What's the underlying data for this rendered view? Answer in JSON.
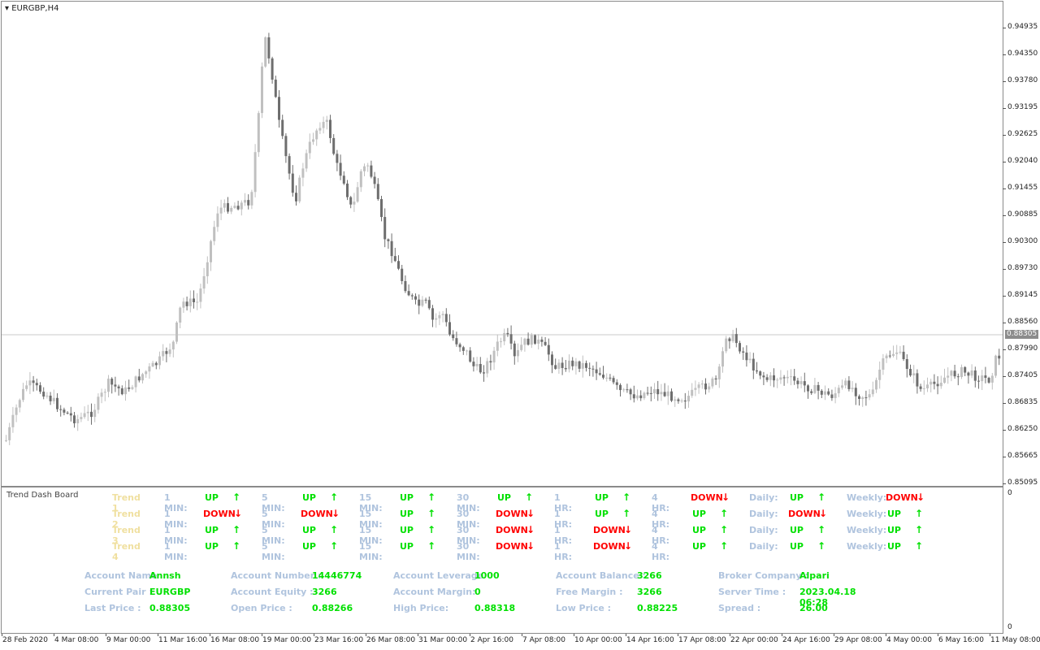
{
  "chart": {
    "title": "EURGBP,H4",
    "current_price": "0.88305",
    "price_ticks": [
      "0.94935",
      "0.94350",
      "0.93780",
      "0.93195",
      "0.92625",
      "0.92040",
      "0.91455",
      "0.90885",
      "0.90300",
      "0.89730",
      "0.89145",
      "0.88560",
      "0.87990",
      "0.87405",
      "0.86835",
      "0.86250",
      "0.85665",
      "0.85095"
    ],
    "time_ticks": [
      "28 Feb 2020",
      "4 Mar 08:00",
      "9 Mar 00:00",
      "11 Mar 16:00",
      "16 Mar 08:00",
      "19 Mar 00:00",
      "23 Mar 16:00",
      "26 Mar 08:00",
      "31 Mar 00:00",
      "2 Apr 16:00",
      "7 Apr 08:00",
      "10 Apr 00:00",
      "14 Apr 16:00",
      "17 Apr 08:00",
      "22 Apr 00:00",
      "24 Apr 16:00",
      "29 Apr 08:00",
      "4 May 00:00",
      "6 May 16:00",
      "11 May 08:00"
    ],
    "up_color": "#c0c0c0",
    "down_color": "#6e6e6e"
  },
  "dashboard": {
    "title": "Trend Dash Board",
    "axis_top": "0",
    "axis_bottom": "0",
    "timeframe_labels": [
      "1 MIN:",
      "5 MIN:",
      "15 MIN:",
      "30 MIN:",
      "1 HR:",
      "4 HR:",
      "Daily:",
      "Weekly:"
    ],
    "trends": [
      {
        "name": "Trend 1",
        "dirs": [
          "UP",
          "UP",
          "UP",
          "UP",
          "UP",
          "DOWN",
          "UP",
          "DOWN"
        ]
      },
      {
        "name": "Trend 2",
        "dirs": [
          "DOWN",
          "DOWN",
          "UP",
          "DOWN",
          "UP",
          "UP",
          "DOWN",
          "UP"
        ]
      },
      {
        "name": "Trend 3",
        "dirs": [
          "UP",
          "UP",
          "UP",
          "DOWN",
          "DOWN",
          "UP",
          "UP",
          "UP"
        ]
      },
      {
        "name": "Trend 4",
        "dirs": [
          "UP",
          "UP",
          "UP",
          "DOWN",
          "DOWN",
          "UP",
          "UP",
          "UP"
        ]
      }
    ],
    "account": [
      [
        {
          "k": "Account Name",
          "v": "Annsh"
        },
        {
          "k": "Current Pair :",
          "v": "EURGBP"
        },
        {
          "k": "Last Price :",
          "v": "0.88305"
        }
      ],
      [
        {
          "k": "Account Number :",
          "v": "14446774"
        },
        {
          "k": "Account Equity :",
          "v": "3266"
        },
        {
          "k": "Open Price :",
          "v": "0.88266"
        }
      ],
      [
        {
          "k": "Account Leverage",
          "v": "1000"
        },
        {
          "k": "Account Margin:",
          "v": "0"
        },
        {
          "k": "High Price:",
          "v": "0.88318"
        }
      ],
      [
        {
          "k": "Account Balance :",
          "v": "3266"
        },
        {
          "k": "Free Margin :",
          "v": "3266"
        },
        {
          "k": "Low Price :",
          "v": "0.88225"
        }
      ],
      [
        {
          "k": "Broker Company :",
          "v": "Alpari"
        },
        {
          "k": "Server Time :",
          "v": "2023.04.18 06:28"
        },
        {
          "k": "Spread :",
          "v": "26.00"
        }
      ]
    ]
  }
}
